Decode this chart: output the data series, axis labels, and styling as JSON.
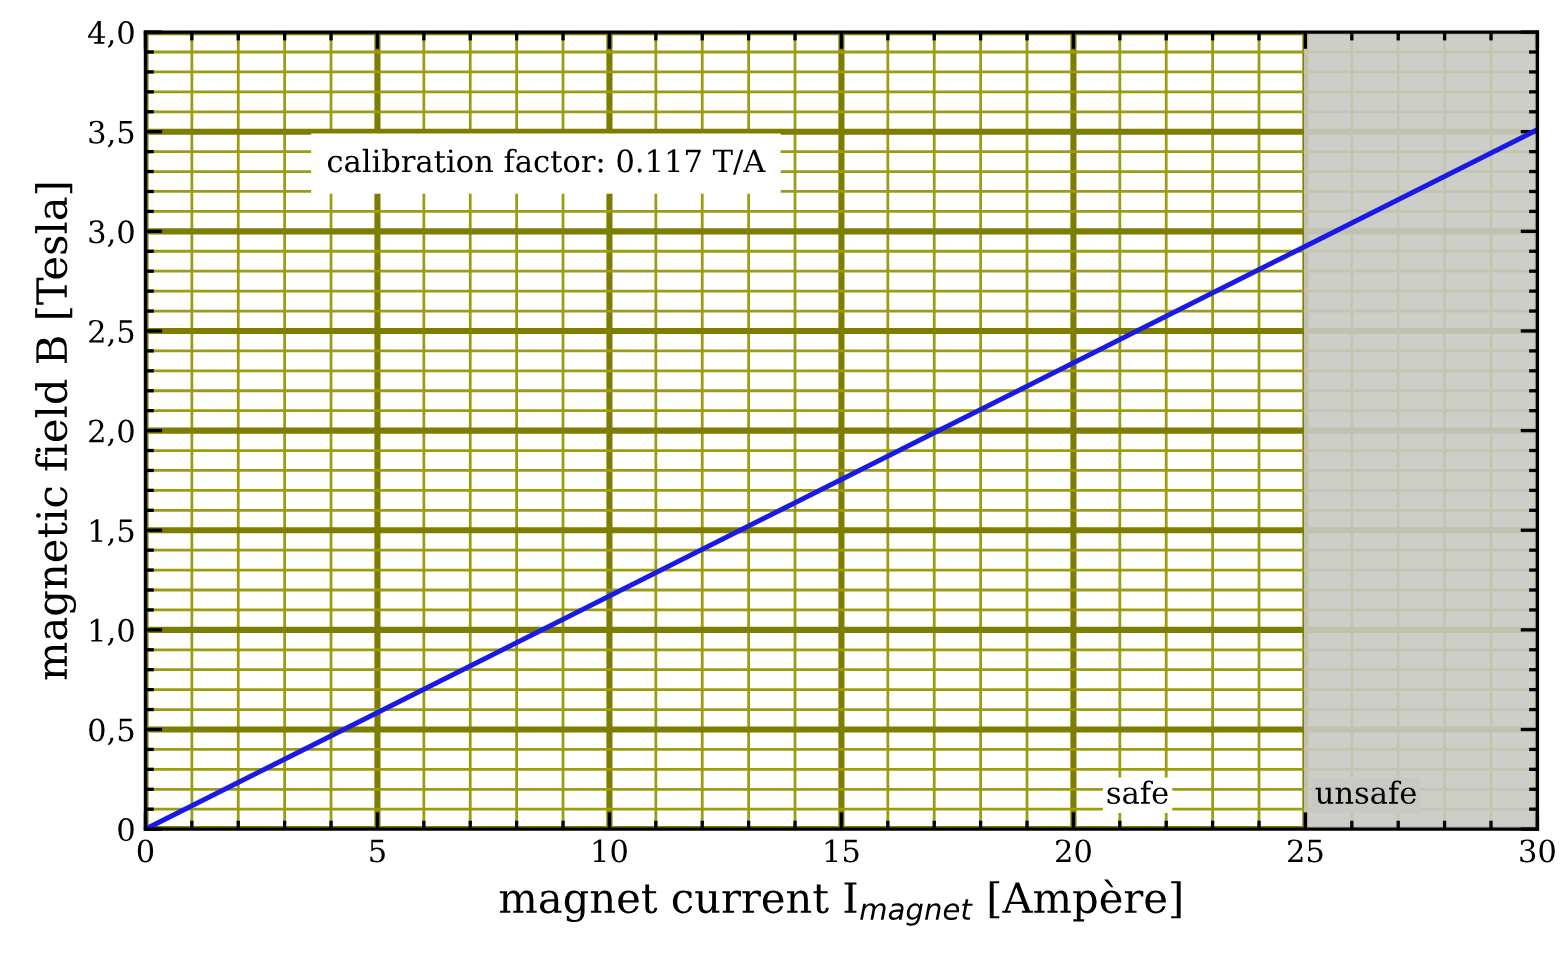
{
  "chart_data": {
    "type": "line",
    "xlabel": "magnet current I$_{magnet}$ [Ampère]",
    "ylabel": "magnetic field B [Tesla]",
    "xlim": [
      0,
      30
    ],
    "xticks": [
      0,
      {
        "value": 1,
        "label": null
      },
      {
        "value": 2,
        "label": null
      },
      {
        "value": 3,
        "label": null
      },
      {
        "value": 4,
        "label": null
      },
      5,
      {
        "value": 6,
        "label": null
      },
      {
        "value": 7,
        "label": null
      },
      {
        "value": 8,
        "label": null
      },
      {
        "value": 9,
        "label": null
      },
      10,
      {
        "value": 11,
        "label": null
      },
      {
        "value": 12,
        "label": null
      },
      {
        "value": 13,
        "label": null
      },
      {
        "value": 14,
        "label": null
      },
      15,
      {
        "value": 16,
        "label": null
      },
      {
        "value": 17,
        "label": null
      },
      {
        "value": 18,
        "label": null
      },
      {
        "value": 19,
        "label": null
      },
      20,
      {
        "value": 21,
        "label": null
      },
      {
        "value": 22,
        "label": null
      },
      {
        "value": 23,
        "label": null
      },
      {
        "value": 24,
        "label": null
      },
      25,
      {
        "value": 26,
        "label": null
      },
      {
        "value": 27,
        "label": null
      },
      {
        "value": 28,
        "label": null
      },
      {
        "value": 29,
        "label": null
      },
      30
    ],
    "ylim": [
      0,
      4.0
    ],
    "yticks": [
      0,
      {
        "value": 0.1,
        "label": null
      },
      {
        "value": 0.2,
        "label": null
      },
      {
        "value": 0.3,
        "label": null
      },
      {
        "value": 0.4,
        "label": null
      },
      {
        "value": 0.5,
        "label": "0,5"
      },
      {
        "value": 0.6,
        "label": null
      },
      {
        "value": 0.7,
        "label": null
      },
      {
        "value": 0.8,
        "label": null
      },
      {
        "value": 0.9,
        "label": null
      },
      {
        "value": 1.0,
        "label": "1,0"
      },
      {
        "value": 1.1,
        "label": null
      },
      {
        "value": 1.2,
        "label": null
      },
      {
        "value": 1.3,
        "label": null
      },
      {
        "value": 1.4,
        "label": null
      },
      {
        "value": 1.5,
        "label": "1,5"
      },
      {
        "value": 1.6,
        "label": null
      },
      {
        "value": 1.7,
        "label": null
      },
      {
        "value": 1.8,
        "label": null
      },
      {
        "value": 1.9,
        "label": null
      },
      {
        "value": 2.0,
        "label": "2,0"
      },
      {
        "value": 2.1,
        "label": null
      },
      {
        "value": 2.2,
        "label": null
      },
      {
        "value": 2.3,
        "label": null
      },
      {
        "value": 2.4,
        "label": null
      },
      {
        "value": 2.5,
        "label": "2,5"
      },
      {
        "value": 2.6,
        "label": null
      },
      {
        "value": 2.7,
        "label": null
      },
      {
        "value": 2.8,
        "label": null
      },
      {
        "value": 2.9,
        "label": null
      },
      {
        "value": 3.0,
        "label": "3,0"
      },
      {
        "value": 3.1,
        "label": null
      },
      {
        "value": 3.2,
        "label": null
      },
      {
        "value": 3.3,
        "label": null
      },
      {
        "value": 3.4,
        "label": null
      },
      {
        "value": 3.5,
        "label": "3,5"
      },
      {
        "value": 3.6,
        "label": null
      },
      {
        "value": 3.7,
        "label": null
      },
      {
        "value": 3.8,
        "label": null
      },
      {
        "value": 3.9,
        "label": null
      },
      {
        "value": 4.0,
        "label": "4,0"
      }
    ],
    "grid": true,
    "series": [
      {
        "x": [
          0,
          30
        ],
        "values": [
          0,
          3.51
        ],
        "color": "#1a1ae6"
      }
    ],
    "bands": [
      {
        "axis": "x",
        "from": 25,
        "to": 30,
        "label": "unsafe",
        "color": "#c9c9c4"
      }
    ],
    "annotations": [
      "calibration factor: 0.117 T/A",
      "safe"
    ]
  }
}
